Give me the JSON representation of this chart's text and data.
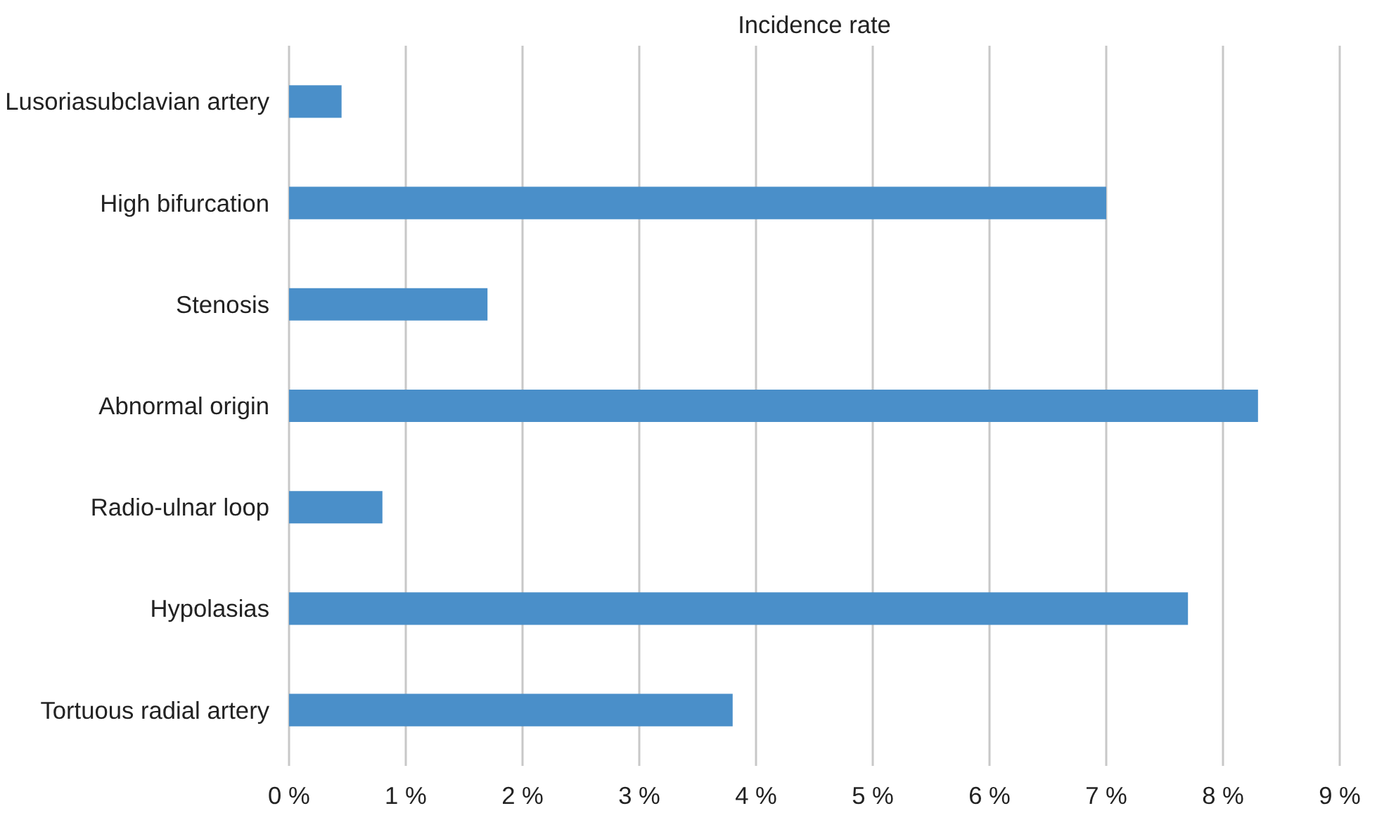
{
  "chart_data": {
    "type": "bar",
    "orientation": "horizontal",
    "title": "Incidence rate",
    "categories": [
      "Lusoriasubclavian artery",
      "High bifurcation",
      "Stenosis",
      "Abnormal origin",
      "Radio-ulnar loop",
      "Hypolasias",
      "Tortuous radial artery"
    ],
    "values": [
      0.45,
      7.0,
      1.7,
      8.3,
      0.8,
      7.7,
      3.8
    ],
    "color": "#4a8fc9",
    "xlim": [
      0,
      9
    ],
    "xticks": [
      {
        "value": 0,
        "label": "0 %"
      },
      {
        "value": 1,
        "label": "1 %"
      },
      {
        "value": 2,
        "label": "2 %"
      },
      {
        "value": 3,
        "label": "3 %"
      },
      {
        "value": 4,
        "label": "4 %"
      },
      {
        "value": 5,
        "label": "5 %"
      },
      {
        "value": 6,
        "label": "6 %"
      },
      {
        "value": 7,
        "label": "7 %"
      },
      {
        "value": 8,
        "label": "8 %"
      },
      {
        "value": 9,
        "label": "9 %"
      }
    ],
    "grid": "x"
  }
}
